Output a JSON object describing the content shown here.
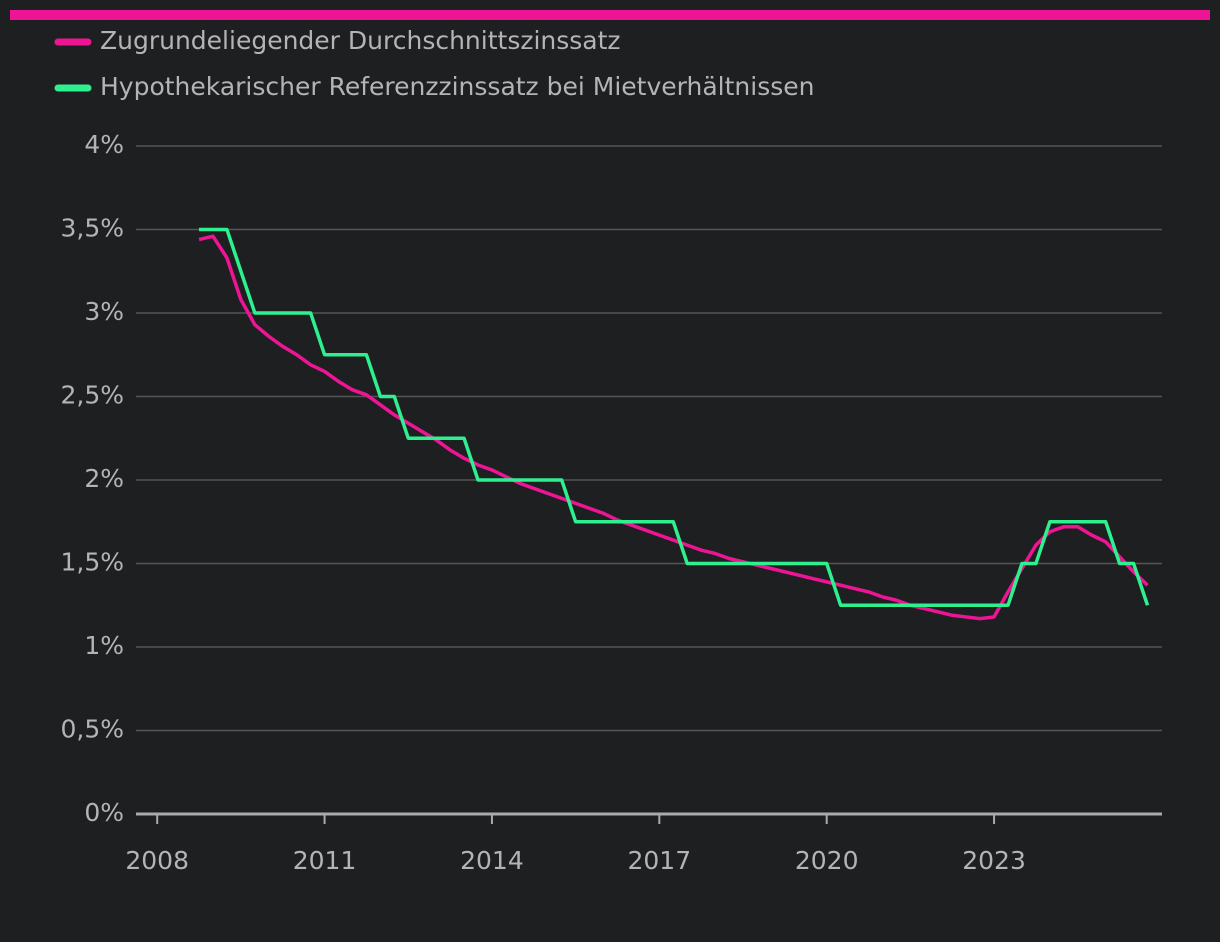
{
  "chart_data": {
    "type": "line",
    "x": [
      2008.75,
      2009,
      2009.25,
      2009.5,
      2009.75,
      2010,
      2010.25,
      2010.5,
      2010.75,
      2011,
      2011.25,
      2011.5,
      2011.75,
      2012,
      2012.25,
      2012.5,
      2012.75,
      2013,
      2013.25,
      2013.5,
      2013.75,
      2014,
      2014.25,
      2014.5,
      2014.75,
      2015,
      2015.25,
      2015.5,
      2015.75,
      2016,
      2016.25,
      2016.5,
      2016.75,
      2017,
      2017.25,
      2017.5,
      2017.75,
      2018,
      2018.25,
      2018.5,
      2018.75,
      2019,
      2019.25,
      2019.5,
      2019.75,
      2020,
      2020.25,
      2020.5,
      2020.75,
      2021,
      2021.25,
      2021.5,
      2021.75,
      2022,
      2022.25,
      2022.5,
      2022.75,
      2023,
      2023.25,
      2023.5,
      2023.75,
      2024,
      2024.25,
      2024.5,
      2024.75,
      2025,
      2025.25,
      2025.5,
      2025.75
    ],
    "series": [
      {
        "name": "Zugrundeliegender Durchschnittszinssatz",
        "color": "#ee1594",
        "values": [
          3.44,
          3.46,
          3.33,
          3.08,
          2.93,
          2.86,
          2.8,
          2.75,
          2.69,
          2.65,
          2.59,
          2.54,
          2.51,
          2.45,
          2.39,
          2.34,
          2.29,
          2.24,
          2.18,
          2.13,
          2.09,
          2.06,
          2.02,
          1.98,
          1.95,
          1.92,
          1.89,
          1.86,
          1.83,
          1.8,
          1.76,
          1.73,
          1.7,
          1.67,
          1.64,
          1.61,
          1.58,
          1.56,
          1.53,
          1.51,
          1.49,
          1.47,
          1.45,
          1.43,
          1.41,
          1.39,
          1.37,
          1.35,
          1.33,
          1.3,
          1.28,
          1.25,
          1.23,
          1.21,
          1.19,
          1.18,
          1.17,
          1.18,
          1.33,
          1.47,
          1.61,
          1.69,
          1.72,
          1.72,
          1.67,
          1.63,
          1.54,
          1.45,
          1.37
        ]
      },
      {
        "name": "Hypothekarischer Referenzzinssatz bei Mietverhältnissen",
        "color": "#2ef08f",
        "values": [
          3.5,
          3.5,
          3.5,
          3.25,
          3,
          3,
          3,
          3,
          3,
          2.75,
          2.75,
          2.75,
          2.75,
          2.5,
          2.5,
          2.25,
          2.25,
          2.25,
          2.25,
          2.25,
          2,
          2,
          2,
          2,
          2,
          2,
          2,
          1.75,
          1.75,
          1.75,
          1.75,
          1.75,
          1.75,
          1.75,
          1.75,
          1.5,
          1.5,
          1.5,
          1.5,
          1.5,
          1.5,
          1.5,
          1.5,
          1.5,
          1.5,
          1.5,
          1.25,
          1.25,
          1.25,
          1.25,
          1.25,
          1.25,
          1.25,
          1.25,
          1.25,
          1.25,
          1.25,
          1.25,
          1.25,
          1.5,
          1.5,
          1.75,
          1.75,
          1.75,
          1.75,
          1.75,
          1.5,
          1.5,
          1.25
        ]
      }
    ],
    "xlim": [
      2007.62,
      2026.01
    ],
    "xticks": [
      2008,
      2011,
      2014,
      2017,
      2020,
      2023
    ],
    "ylim": [
      0,
      4
    ],
    "yticks": [
      {
        "value": 0,
        "label": "0%"
      },
      {
        "value": 0.5,
        "label": "0,5%"
      },
      {
        "value": 1,
        "label": "1%"
      },
      {
        "value": 1.5,
        "label": "1,5%"
      },
      {
        "value": 2,
        "label": "2%"
      },
      {
        "value": 2.5,
        "label": "2,5%"
      },
      {
        "value": 3,
        "label": "3%"
      },
      {
        "value": 3.5,
        "label": "3,5%"
      },
      {
        "value": 4,
        "label": "4%"
      }
    ],
    "grid": true
  }
}
